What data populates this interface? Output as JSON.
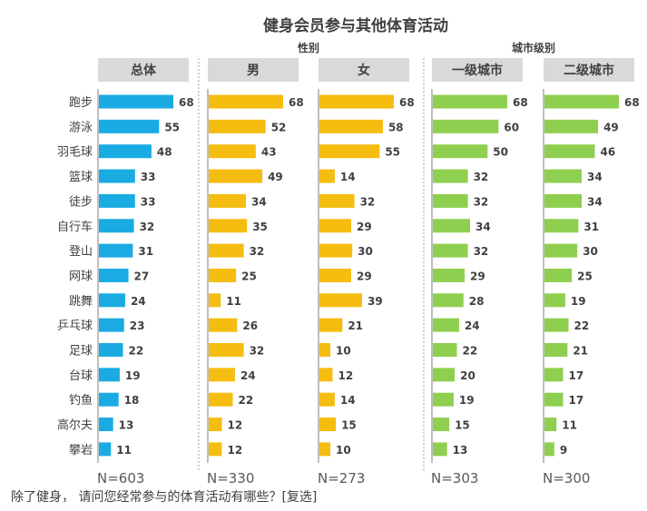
{
  "chart_data": {
    "type": "bar",
    "orientation": "horizontal",
    "title": "健身会员参与其他体育活动",
    "group_labels": {
      "gender": "性别",
      "city": "城市级别"
    },
    "categories": [
      "跑步",
      "游泳",
      "羽毛球",
      "篮球",
      "徒步",
      "自行车",
      "登山",
      "网球",
      "跳舞",
      "乒乓球",
      "足球",
      "台球",
      "钓鱼",
      "高尔夫",
      "攀岩"
    ],
    "series": [
      {
        "name": "总体",
        "n": "N=603",
        "color": "#1aabe3",
        "values": [
          68,
          55,
          48,
          33,
          33,
          32,
          31,
          27,
          24,
          23,
          22,
          19,
          18,
          13,
          11
        ]
      },
      {
        "name": "男",
        "n": "N=330",
        "color": "#f5bd0f",
        "values": [
          68,
          52,
          43,
          49,
          34,
          35,
          32,
          25,
          11,
          26,
          32,
          24,
          22,
          12,
          12
        ]
      },
      {
        "name": "女",
        "n": "N=273",
        "color": "#f5bd0f",
        "values": [
          68,
          58,
          55,
          14,
          32,
          29,
          30,
          29,
          39,
          21,
          10,
          12,
          14,
          15,
          10
        ]
      },
      {
        "name": "一级城市",
        "n": "N=303",
        "color": "#8fcf4f",
        "values": [
          68,
          60,
          50,
          32,
          32,
          34,
          32,
          29,
          28,
          24,
          22,
          20,
          19,
          15,
          13
        ]
      },
      {
        "name": "二级城市",
        "n": "N=300",
        "color": "#8fcf4f",
        "values": [
          68,
          49,
          46,
          34,
          34,
          31,
          30,
          25,
          19,
          22,
          21,
          17,
          17,
          11,
          9
        ]
      }
    ],
    "xlim": [
      0,
      90
    ],
    "grid": false,
    "legend": "none"
  },
  "footnote": "除了健身， 请问您经常参与的体育活动有哪些？[复选]"
}
